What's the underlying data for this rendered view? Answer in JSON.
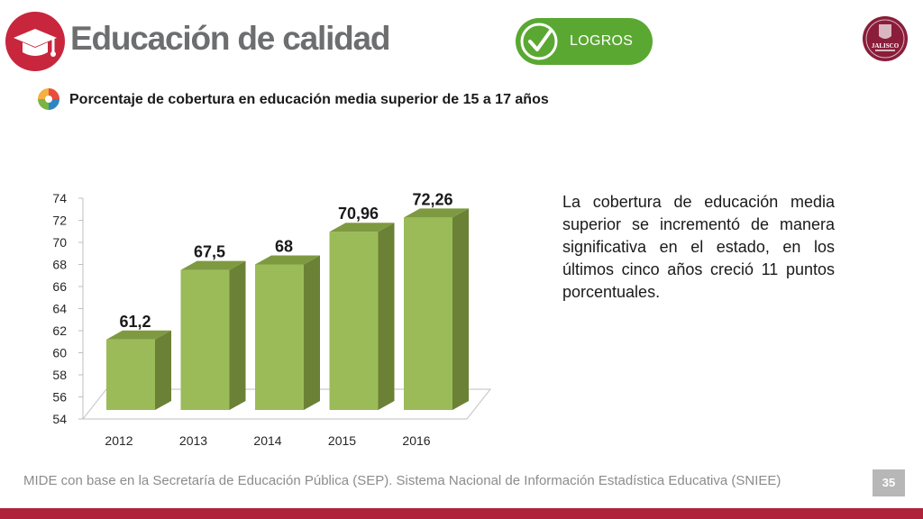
{
  "header": {
    "title": "Educación de calidad",
    "badge_label": "LOGROS",
    "logo_text": "JALISCO"
  },
  "indicator": {
    "title": "Porcentaje de cobertura en educación media superior de 15 a 17 años"
  },
  "description": "La cobertura de educación media superior se incrementó de manera significativa en el estado, en los últimos cinco años creció 11 puntos porcentuales.",
  "footer": {
    "source": "MIDE con base en la Secretaría de Educación Pública (SEP). Sistema Nacional de Información Estadística Educativa (SNIEE)",
    "page_number": "35"
  },
  "colors": {
    "brand_red": "#c8263d",
    "logros_green": "#5aa832",
    "bar_front": "#9bbb59",
    "bar_side": "#6b8136",
    "bar_top": "#7e9a41"
  },
  "icons": {
    "header": "graduation-cap-icon",
    "badge": "checkmark-icon",
    "indicator": "pie-chart-icon"
  },
  "chart_data": {
    "type": "bar",
    "title": "",
    "xlabel": "",
    "ylabel": "",
    "categories": [
      "2012",
      "2013",
      "2014",
      "2015",
      "2016"
    ],
    "values": [
      61.2,
      67.5,
      68,
      70.96,
      72.26
    ],
    "data_labels": [
      "61,2",
      "67,5",
      "68",
      "70,96",
      "72,26"
    ],
    "ylim": [
      54,
      74
    ],
    "yticks": [
      "54",
      "56",
      "58",
      "60",
      "62",
      "64",
      "66",
      "68",
      "70",
      "72",
      "74"
    ],
    "style": "3d-column",
    "grid": false,
    "legend": "none"
  }
}
